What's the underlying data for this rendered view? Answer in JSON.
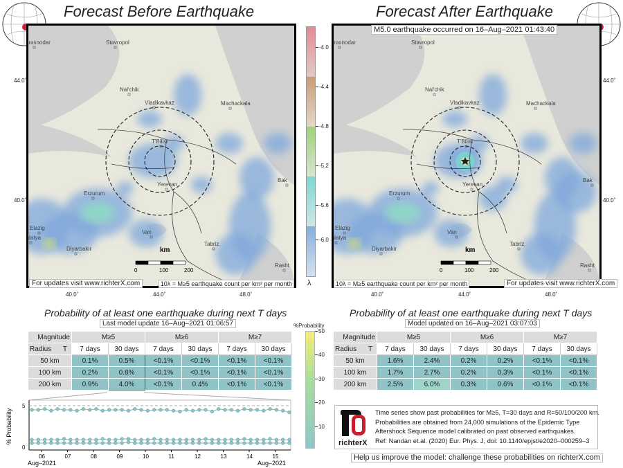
{
  "left": {
    "title": "Forecast Before Earthquake",
    "update_label": "For updates visit www.richterX.com",
    "table_title": "Probability of at least one earthquake during next T days",
    "model_update": "Last model update 16–Aug–2021 01:06:57",
    "rows": [
      [
        "50 km",
        "0.1%",
        "0.5%",
        "<0.1%",
        "<0.1%",
        "<0.1%",
        "<0.1%"
      ],
      [
        "100 km",
        "0.2%",
        "0.8%",
        "<0.1%",
        "<0.1%",
        "<0.1%",
        "<0.1%"
      ],
      [
        "200 km",
        "0.9%",
        "4.0%",
        "<0.1%",
        "0.4%",
        "<0.1%",
        "<0.1%"
      ]
    ]
  },
  "right": {
    "title": "Forecast After Earthquake",
    "event": "M5.0 earthquake occurred on 16–Aug–2021 01:43:40",
    "update_label": "For updates visit www.richterX.com",
    "table_title": "Probability of at least one earthquake during next T days",
    "model_update": "Model updated on 16–Aug–2021 03:07:03",
    "rows": [
      [
        "50 km",
        "1.6%",
        "2.4%",
        "0.2%",
        "0.2%",
        "<0.1%",
        "<0.1%"
      ],
      [
        "100 km",
        "1.7%",
        "2.7%",
        "0.2%",
        "0.3%",
        "<0.1%",
        "<0.1%"
      ],
      [
        "200 km",
        "2.5%",
        "6.0%",
        "0.3%",
        "0.6%",
        "<0.1%",
        "<0.1%"
      ]
    ]
  },
  "table_header": {
    "magnitude": "Magnitude",
    "radius": "Radius",
    "t": "T",
    "m5": "M≥5",
    "m6": "M≥6",
    "m7": "M≥7",
    "d7": "7 days",
    "d30": "30 days"
  },
  "map": {
    "lat_ticks": [
      "44.0˚",
      "40.0˚"
    ],
    "lon_ticks": [
      "40.0˚",
      "44.0˚",
      "48.0˚"
    ],
    "cities": [
      "Krasnodar",
      "Stavropol",
      "Nal'chik",
      "Vladikavkaz",
      "Machackala",
      "T'Bilisi",
      "Yerevan",
      "Erzurum",
      "Elazig",
      "Malatya",
      "Diyarbakir",
      "Van",
      "Tabriz",
      "Rasht",
      "Bak"
    ],
    "scale_unit": "km",
    "scale_ticks": [
      "0",
      "100",
      "200"
    ],
    "lambda_note": "10λ = M≥5 earthquake count per km² per month"
  },
  "colorbar": {
    "label": "λ",
    "ticks": [
      "-4.0",
      "-4.4",
      "-4.8",
      "-5.2",
      "-5.6",
      "-6.0"
    ],
    "colors": [
      "#e48a96",
      "#e0c9c5",
      "#c89e78",
      "#e4d7c8",
      "#9fd27a",
      "#d7e4cf",
      "#7fd6d4",
      "#d0e6e4",
      "#86aede",
      "#d4e1ef"
    ]
  },
  "prob_colorbar": {
    "label": "%Probability",
    "ticks": [
      "50",
      "40",
      "30",
      "20",
      "10"
    ]
  },
  "chart_data": {
    "type": "line",
    "title": "",
    "xlabel": "Aug–2021",
    "ylabel": "% Probability",
    "ylim": [
      0,
      5.5
    ],
    "yticks": [
      "5",
      "0"
    ],
    "x_ticks": [
      "06",
      "07",
      "08",
      "09",
      "10",
      "11",
      "12",
      "13",
      "14",
      "15"
    ],
    "x_range_label_left": "Aug–2021",
    "x_range_label_right": "Aug–2021",
    "reference_line": 5,
    "series": [
      {
        "name": "R=200 km",
        "values": [
          4.5,
          4.5,
          4.6,
          4.4,
          4.6,
          4.5,
          4.5,
          4.4,
          4.6,
          4.5,
          4.6,
          4.4,
          4.5,
          4.5,
          4.5,
          4.4,
          4.6,
          4.5,
          4.4,
          4.5,
          4.5,
          4.5,
          4.4,
          4.3,
          4.5,
          4.4,
          4.5,
          4.5,
          4.3,
          4.6,
          4.5,
          4.5,
          4.4,
          4.6,
          4.5,
          4.5,
          4.4,
          4.6,
          4.5,
          4.4,
          4.2
        ]
      },
      {
        "name": "R=100 km",
        "values": [
          0.9,
          0.9,
          0.9,
          0.9,
          0.9,
          1.0,
          0.9,
          0.9,
          0.9,
          0.9,
          0.9,
          1.0,
          0.9,
          0.9,
          1.0,
          1.0,
          0.9,
          0.9,
          0.9,
          1.0,
          0.9,
          0.9,
          0.9,
          0.9,
          0.9,
          0.9,
          0.9,
          1.0,
          0.9,
          0.9,
          0.9,
          0.9,
          0.9,
          1.0,
          0.9,
          0.9,
          0.9,
          1.0,
          0.9,
          0.9,
          0.9
        ]
      },
      {
        "name": "R=50 km",
        "values": [
          0.5,
          0.5,
          0.5,
          0.5,
          0.5,
          0.5,
          0.5,
          0.5,
          0.5,
          0.5,
          0.5,
          0.5,
          0.5,
          0.5,
          0.5,
          0.6,
          0.5,
          0.5,
          0.5,
          0.5,
          0.5,
          0.5,
          0.5,
          0.5,
          0.5,
          0.5,
          0.5,
          0.5,
          0.5,
          0.5,
          0.5,
          0.5,
          0.5,
          0.5,
          0.5,
          0.5,
          0.5,
          0.5,
          0.5,
          0.5,
          0.5
        ]
      }
    ]
  },
  "footer": {
    "info_lines": [
      "Time series show past probabilities for M≥5, T=30 days and R=50/100/200 km.",
      "Probabilities are obtained from 24,000 simulations of the Epidemic Type",
      "Aftershock Sequence model calibrated on past observed earthquakes.",
      "Ref: Nandan et.al. (2020) Eur. Phys. J, doi: 10.1140/epjst/e2020–000259–3"
    ],
    "logo_text": "richterX",
    "cta": "Help us improve the model: challenge these probabilities on richterX.com"
  }
}
